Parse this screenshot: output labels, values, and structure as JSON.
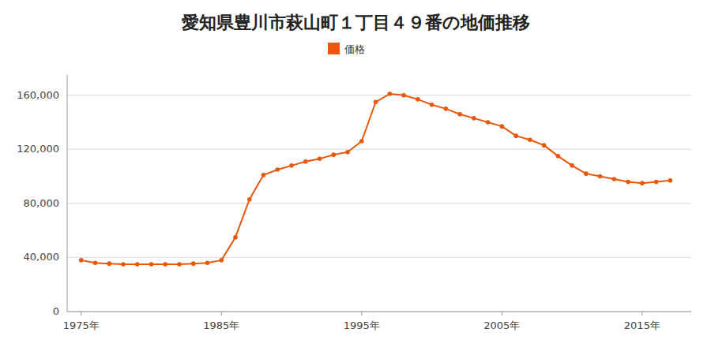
{
  "chart_data": {
    "type": "line",
    "title": "愛知県豊川市萩山町１丁目４９番の地価推移",
    "x": [
      1975,
      1976,
      1977,
      1978,
      1979,
      1980,
      1981,
      1982,
      1983,
      1984,
      1985,
      1986,
      1987,
      1988,
      1989,
      1990,
      1991,
      1992,
      1993,
      1994,
      1995,
      1996,
      1997,
      1998,
      1999,
      2000,
      2001,
      2002,
      2003,
      2004,
      2005,
      2006,
      2007,
      2008,
      2009,
      2010,
      2011,
      2012,
      2013,
      2014,
      2015,
      2016,
      2017
    ],
    "series": [
      {
        "name": "価格",
        "color": "#E8580A",
        "marker": "circle",
        "values": [
          38000,
          36000,
          35500,
          35000,
          35000,
          35000,
          35000,
          35000,
          35500,
          36000,
          38000,
          55000,
          83000,
          101000,
          105000,
          108000,
          111000,
          113000,
          116000,
          118000,
          126000,
          155000,
          161000,
          160000,
          157000,
          153000,
          150000,
          146000,
          143000,
          140000,
          137000,
          130000,
          127000,
          123000,
          115000,
          108000,
          102000,
          100000,
          98000,
          96000,
          95000,
          96000,
          97000
        ]
      }
    ],
    "xlim": [
      1974.0,
      2018.5
    ],
    "xticks": [
      {
        "value": 1975,
        "label": "1975年"
      },
      {
        "value": 1985,
        "label": "1985年"
      },
      {
        "value": 1995,
        "label": "1995年"
      },
      {
        "value": 2005,
        "label": "2005年"
      },
      {
        "value": 2015,
        "label": "2015年"
      }
    ],
    "ylim": [
      0,
      175000
    ],
    "yticks": [
      0,
      {
        "value": 40000,
        "label": "40,000"
      },
      {
        "value": 80000,
        "label": "80,000"
      },
      {
        "value": 120000,
        "label": "120,000"
      },
      {
        "value": 160000,
        "label": "160,000"
      }
    ],
    "grid": true,
    "legend": "top"
  }
}
